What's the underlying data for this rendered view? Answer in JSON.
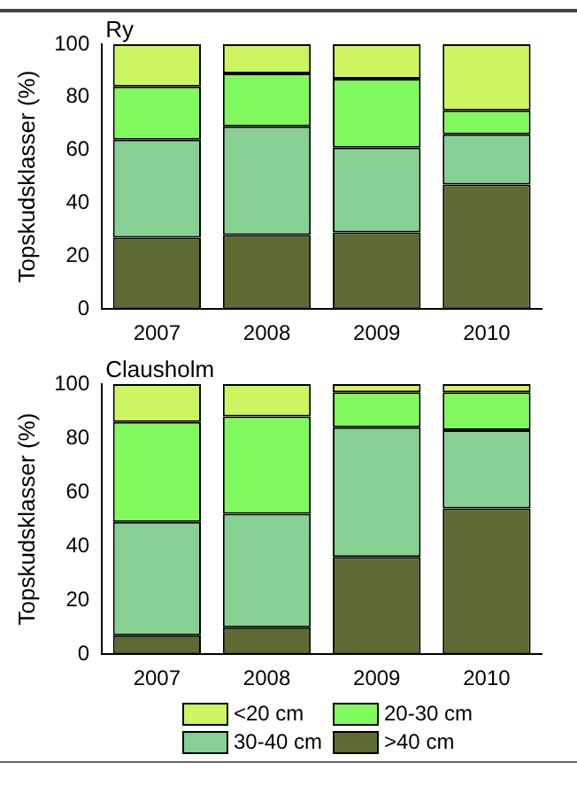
{
  "chart_data": [
    {
      "type": "bar",
      "title": "Ry",
      "ylabel": "Topskudsklasser (%)",
      "categories": [
        "2007",
        "2008",
        "2009",
        "2010"
      ],
      "stacked": true,
      "ylim": [
        0,
        100
      ],
      "yticks": [
        0,
        20,
        40,
        60,
        80,
        100
      ],
      "grid": false,
      "legend": false,
      "series": [
        {
          "color": "#5b6b32",
          "values": [
            27,
            28,
            29,
            47
          ]
        },
        {
          "color": "#87d094",
          "values": [
            37,
            41,
            32,
            19
          ]
        },
        {
          "color": "#80f95c",
          "values": [
            20,
            20,
            26,
            9
          ]
        },
        {
          "color": "#ccf560",
          "values": [
            16,
            11,
            13,
            25
          ]
        }
      ]
    },
    {
      "type": "bar",
      "title": "Clausholm",
      "ylabel": "Topskudsklasser (%)",
      "categories": [
        "2007",
        "2008",
        "2009",
        "2010"
      ],
      "stacked": true,
      "ylim": [
        0,
        100
      ],
      "yticks": [
        0,
        20,
        40,
        60,
        80,
        100
      ],
      "grid": false,
      "legend": "bottom",
      "series": [
        {
          "name": ">40 cm",
          "color": "#5b6b32",
          "values": [
            7,
            10,
            36,
            54
          ]
        },
        {
          "name": "30-40 cm",
          "color": "#87d094",
          "values": [
            42,
            42,
            48,
            29
          ]
        },
        {
          "name": "20-30 cm",
          "color": "#80f95c",
          "values": [
            37,
            36,
            13,
            14
          ]
        },
        {
          "name": "<20 cm",
          "color": "#ccf560",
          "values": [
            14,
            12,
            3,
            3
          ]
        }
      ]
    }
  ]
}
